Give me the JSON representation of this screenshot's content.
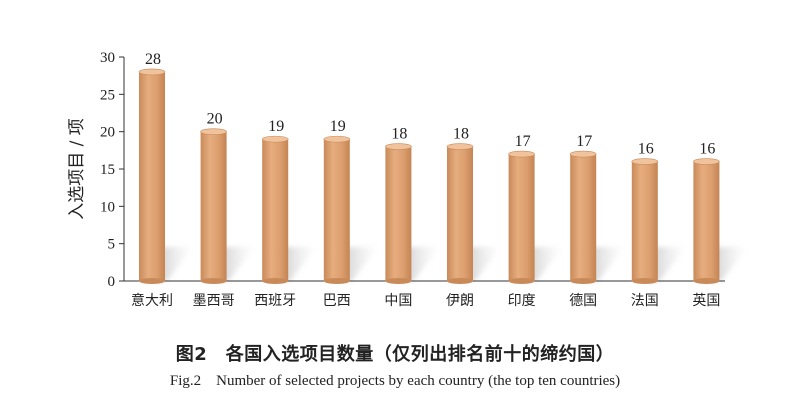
{
  "chart_data": {
    "type": "bar",
    "ylabel": "入选项目 / 项",
    "xlabel": "",
    "ylim": [
      0,
      30
    ],
    "yticks": [
      0,
      5,
      10,
      15,
      20,
      25,
      30
    ],
    "categories": [
      "意大利",
      "墨西哥",
      "西班牙",
      "巴西",
      "中国",
      "伊朗",
      "印度",
      "德国",
      "法国",
      "英国"
    ],
    "values": [
      28,
      20,
      19,
      19,
      18,
      18,
      17,
      17,
      16,
      16
    ],
    "bar_color": "#dda171",
    "grid": false,
    "legend": "none"
  },
  "caption": {
    "cn": "图2　各国入选项目数量（仅列出排名前十的缔约国）",
    "en": "Fig.2　Number of selected projects by each country (the top ten countries)"
  }
}
